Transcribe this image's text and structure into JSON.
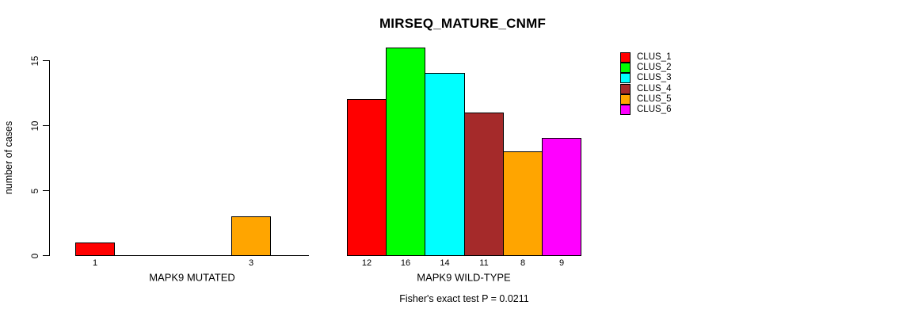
{
  "chart_data": {
    "type": "bar",
    "title": "MIRSEQ_MATURE_CNMF",
    "ylabel": "number of cases",
    "xlabel": "",
    "ylim": [
      0,
      15
    ],
    "yticks": [
      0,
      5,
      10,
      15
    ],
    "grid": false,
    "legend_position": "right",
    "categories": [
      "CLUS_1",
      "CLUS_2",
      "CLUS_3",
      "CLUS_4",
      "CLUS_5",
      "CLUS_6"
    ],
    "series_colors": [
      "#ff0000",
      "#00ff00",
      "#00ffff",
      "#a52a2a",
      "#ffa500",
      "#ff00ff"
    ],
    "groups": [
      {
        "label": "MAPK9 MUTATED",
        "values": [
          1,
          0,
          0,
          0,
          3,
          0
        ]
      },
      {
        "label": "MAPK9 WILD-TYPE",
        "values": [
          12,
          16,
          14,
          11,
          8,
          9
        ]
      }
    ],
    "annotation": "Fisher's exact test P = 0.0211"
  }
}
